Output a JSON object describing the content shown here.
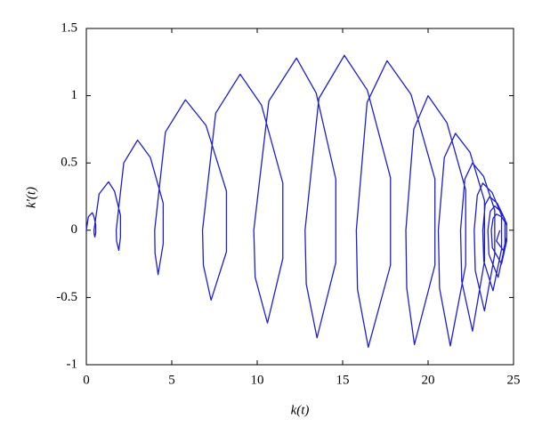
{
  "chart_data": {
    "type": "line",
    "xlabel": "k(t)",
    "ylabel": "k′(t)",
    "color": "#1e1ed2",
    "xlim": [
      0,
      25
    ],
    "xticks": [
      0,
      5,
      10,
      15,
      20,
      25
    ],
    "ylim": [
      -1,
      1.5
    ],
    "yticks": [
      -1,
      -0.5,
      0,
      0.5,
      1,
      1.5
    ],
    "grid": false,
    "x": [
      0,
      0.12,
      0.35,
      0.45,
      0.55,
      0.55,
      0.5,
      0.46,
      0.45,
      0.75,
      1.3,
      1.65,
      2.0,
      2.0,
      1.9,
      1.77,
      1.75,
      2.19,
      3.0,
      3.75,
      4.5,
      4.5,
      4.2,
      4.02,
      4.0,
      4.63,
      5.8,
      7.0,
      8.2,
      8.2,
      7.3,
      6.85,
      6.8,
      7.57,
      9.0,
      10.25,
      11.5,
      11.5,
      10.6,
      9.88,
      9.8,
      10.68,
      12.3,
      13.45,
      14.6,
      14.6,
      13.5,
      12.87,
      12.8,
      13.61,
      15.1,
      16.45,
      17.8,
      17.8,
      16.5,
      15.87,
      15.8,
      16.43,
      17.6,
      19.0,
      20.4,
      20.4,
      19.2,
      18.75,
      18.7,
      19.16,
      20.0,
      21.1,
      22.2,
      22.2,
      21.3,
      20.67,
      20.6,
      20.95,
      21.6,
      22.45,
      23.3,
      23.3,
      22.6,
      21.97,
      21.9,
      22.15,
      22.6,
      23.25,
      23.9,
      23.9,
      23.3,
      22.76,
      22.7,
      22.88,
      23.2,
      23.75,
      24.3,
      24.3,
      23.8,
      23.26,
      23.2,
      23.34,
      23.6,
      24.05,
      24.5,
      24.5,
      24.1,
      23.56,
      23.5,
      23.64,
      23.9,
      24.25,
      24.6,
      24.6,
      24.3,
      23.76,
      23.7,
      23.81,
      24.0,
      24.3,
      24.6,
      24.6,
      24.4,
      24.0,
      24.2
    ],
    "values": [
      0,
      0.1,
      0.13,
      0.1,
      0.04,
      -0.02,
      -0.05,
      -0.03,
      0,
      0.27,
      0.36,
      0.29,
      0.11,
      -0.05,
      -0.15,
      -0.08,
      0,
      0.5,
      0.67,
      0.54,
      0.2,
      -0.1,
      -0.33,
      -0.17,
      0,
      0.73,
      0.97,
      0.78,
      0.29,
      -0.16,
      -0.52,
      -0.26,
      0,
      0.87,
      1.16,
      0.93,
      0.35,
      -0.21,
      -0.69,
      -0.35,
      0,
      0.96,
      1.28,
      1.02,
      0.38,
      -0.24,
      -0.8,
      -0.4,
      0,
      0.98,
      1.3,
      1.04,
      0.39,
      -0.26,
      -0.87,
      -0.44,
      0,
      0.95,
      1.26,
      1.01,
      0.38,
      -0.26,
      -0.85,
      -0.43,
      0,
      0.75,
      1.0,
      0.8,
      0.3,
      -0.26,
      -0.86,
      -0.43,
      0,
      0.54,
      0.72,
      0.58,
      0.22,
      -0.23,
      -0.75,
      -0.38,
      0,
      0.38,
      0.5,
      0.4,
      0.15,
      -0.18,
      -0.6,
      -0.3,
      0,
      0.26,
      0.35,
      0.28,
      0.11,
      -0.14,
      -0.45,
      -0.23,
      0,
      0.19,
      0.25,
      0.2,
      0.08,
      -0.11,
      -0.35,
      -0.18,
      0,
      0.14,
      0.18,
      0.14,
      0.05,
      -0.08,
      -0.25,
      -0.13,
      0,
      0.09,
      0.12,
      0.1,
      0.04,
      -0.05,
      -0.15,
      -0.08,
      0
    ]
  }
}
